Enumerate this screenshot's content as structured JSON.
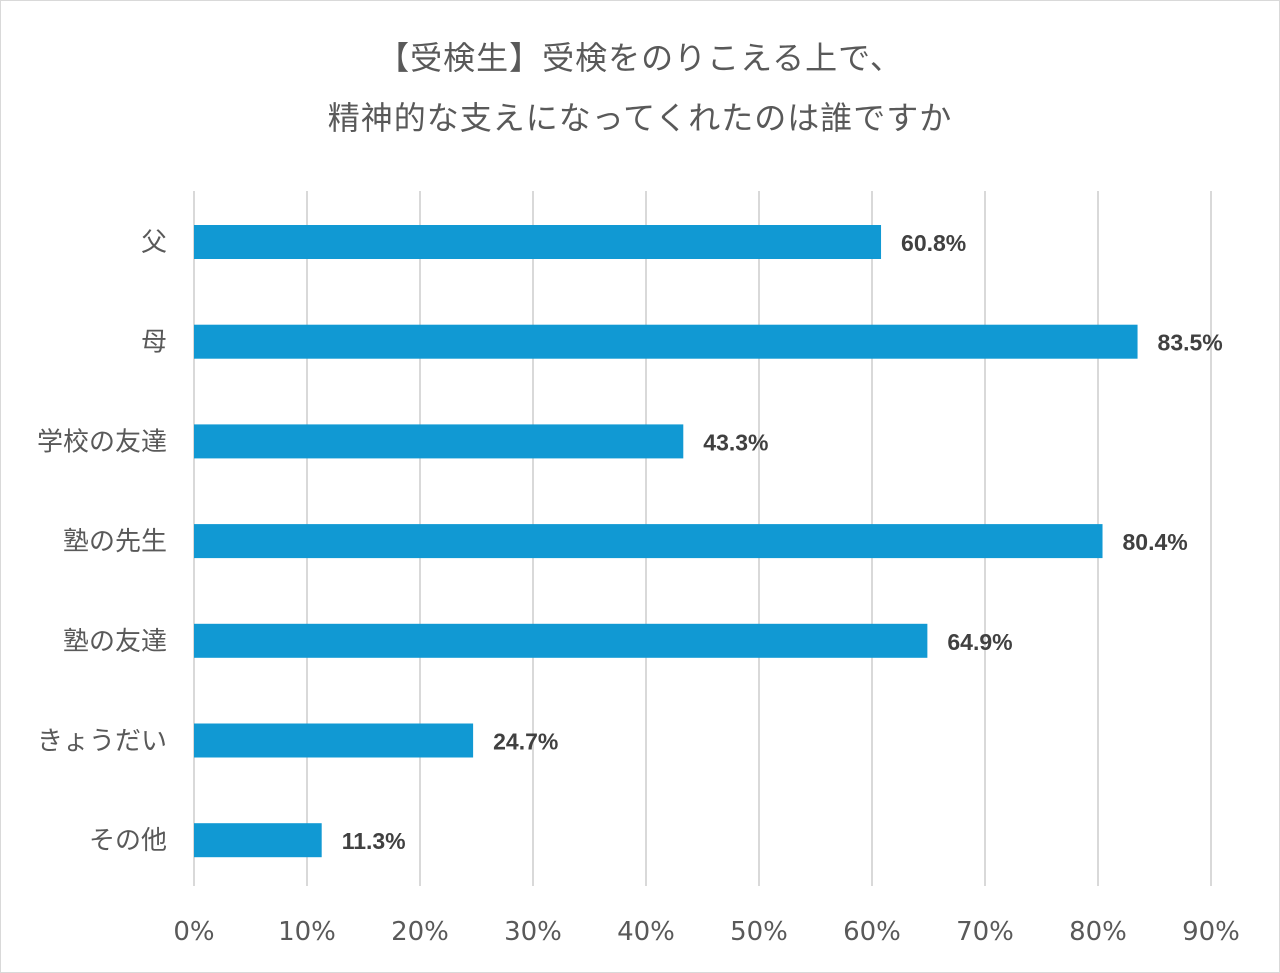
{
  "chart_data": {
    "type": "bar",
    "orientation": "horizontal",
    "title_lines": [
      "【受検生】受検をのりこえる上で、",
      "精神的な支えになってくれたのは誰ですか"
    ],
    "categories": [
      "父",
      "母",
      "学校の友達",
      "塾の先生",
      "塾の友達",
      "きょうだい",
      "その他"
    ],
    "values": [
      60.8,
      83.5,
      43.3,
      80.4,
      64.9,
      24.7,
      11.3
    ],
    "value_labels": [
      "60.8%",
      "83.5%",
      "43.3%",
      "80.4%",
      "64.9%",
      "24.7%",
      "11.3%"
    ],
    "x_ticks": [
      "0%",
      "10%",
      "20%",
      "30%",
      "40%",
      "50%",
      "60%",
      "70%",
      "80%",
      "90%"
    ],
    "xlim": [
      0,
      90
    ],
    "grid": true,
    "xlabel": "",
    "ylabel": "",
    "bar_color": "#1199d3",
    "grid_color": "#d9d9d9",
    "label_color": "#595959",
    "value_label_color": "#404040"
  }
}
